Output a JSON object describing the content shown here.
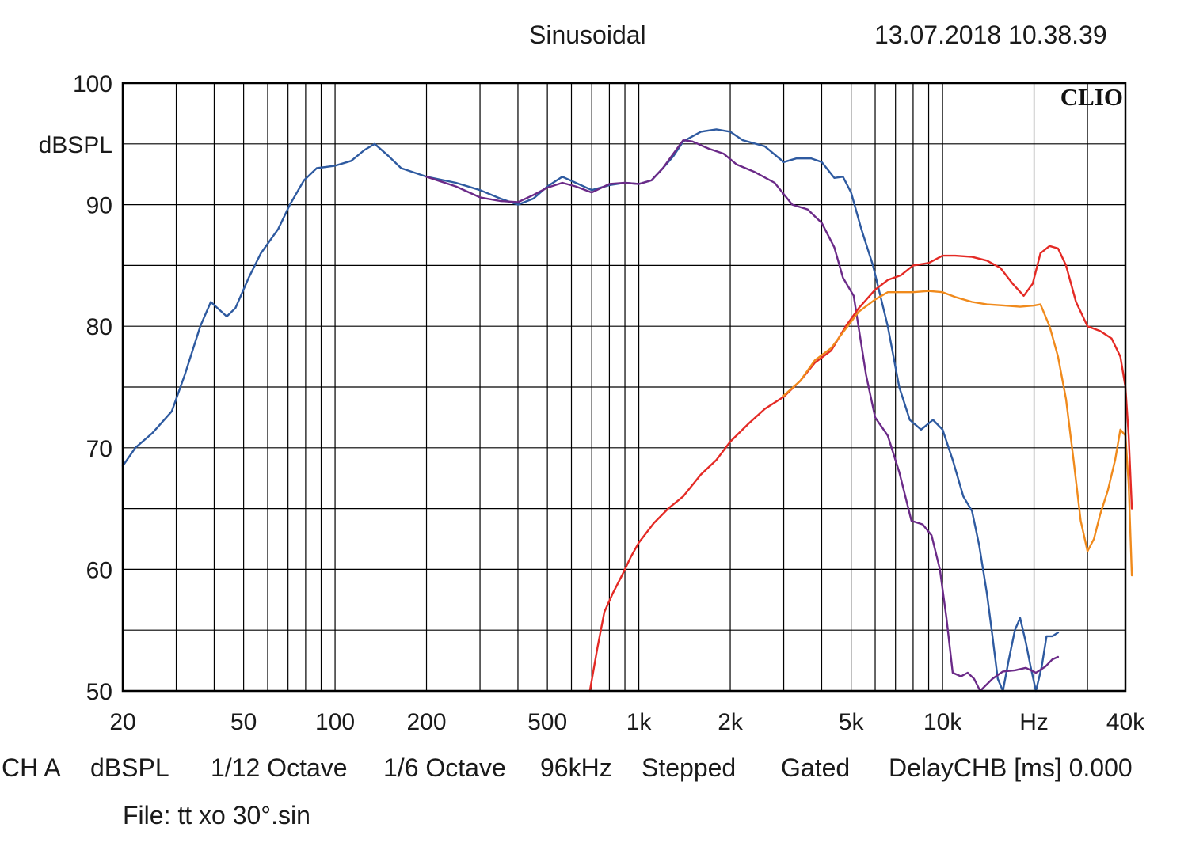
{
  "header": {
    "title": "Sinusoidal",
    "timestamp": "13.07.2018 10.38.39"
  },
  "brand": "CLIO",
  "status_bar": {
    "channel": "CH A",
    "unit": "dBSPL",
    "smoothing1": "1/12 Octave",
    "smoothing2": "1/6 Octave",
    "sample_rate": "96kHz",
    "mode": "Stepped",
    "window": "Gated",
    "delay": "DelayCHB [ms] 0.000"
  },
  "file": "File: tt xo 30°.sin",
  "colors": {
    "grid": "#000000",
    "blue": "#2e5aa0",
    "purple": "#6b2a88",
    "red": "#e42a25",
    "orange": "#f08a1c"
  },
  "chart_data": {
    "type": "line",
    "x_scale": "log",
    "xlim": [
      20,
      40000
    ],
    "ylim": [
      50,
      100
    ],
    "ylabel": "dBSPL",
    "y_ticks": [
      {
        "v": 100,
        "label": "100"
      },
      {
        "v": 90,
        "label": "90"
      },
      {
        "v": 80,
        "label": "80"
      },
      {
        "v": 70,
        "label": "70"
      },
      {
        "v": 60,
        "label": "60"
      },
      {
        "v": 50,
        "label": "50"
      }
    ],
    "x_tick_labels": [
      {
        "v": 20,
        "label": "20"
      },
      {
        "v": 50,
        "label": "50"
      },
      {
        "v": 100,
        "label": "100"
      },
      {
        "v": 200,
        "label": "200"
      },
      {
        "v": 500,
        "label": "500"
      },
      {
        "v": 1000,
        "label": "1k"
      },
      {
        "v": 2000,
        "label": "2k"
      },
      {
        "v": 5000,
        "label": "5k"
      },
      {
        "v": 10000,
        "label": "10k"
      },
      {
        "v": 20000,
        "label": "Hz"
      },
      {
        "v": 40000,
        "label": "40k"
      }
    ],
    "series": [
      {
        "color_key": "blue",
        "points": [
          [
            20,
            68.5
          ],
          [
            22,
            70
          ],
          [
            25,
            71.2
          ],
          [
            29,
            73
          ],
          [
            32,
            76
          ],
          [
            36,
            80
          ],
          [
            39,
            82
          ],
          [
            41,
            81.5
          ],
          [
            44,
            80.8
          ],
          [
            47,
            81.5
          ],
          [
            52,
            84
          ],
          [
            57,
            86
          ],
          [
            65,
            88
          ],
          [
            71,
            90
          ],
          [
            79,
            92
          ],
          [
            87,
            93
          ],
          [
            100,
            93.2
          ],
          [
            113,
            93.6
          ],
          [
            125,
            94.5
          ],
          [
            135,
            95
          ],
          [
            150,
            94
          ],
          [
            165,
            93
          ],
          [
            200,
            92.3
          ],
          [
            250,
            91.8
          ],
          [
            300,
            91.2
          ],
          [
            350,
            90.5
          ],
          [
            400,
            90
          ],
          [
            450,
            90.5
          ],
          [
            500,
            91.5
          ],
          [
            560,
            92.3
          ],
          [
            620,
            91.8
          ],
          [
            700,
            91.2
          ],
          [
            800,
            91.6
          ],
          [
            900,
            91.8
          ],
          [
            1000,
            91.7
          ],
          [
            1100,
            92
          ],
          [
            1200,
            93
          ],
          [
            1300,
            94
          ],
          [
            1400,
            95.2
          ],
          [
            1600,
            96
          ],
          [
            1800,
            96.2
          ],
          [
            2000,
            96
          ],
          [
            2200,
            95.3
          ],
          [
            2600,
            94.8
          ],
          [
            3000,
            93.5
          ],
          [
            3300,
            93.8
          ],
          [
            3700,
            93.8
          ],
          [
            4000,
            93.5
          ],
          [
            4400,
            92.2
          ],
          [
            4700,
            92.3
          ],
          [
            5000,
            91
          ],
          [
            5400,
            88
          ],
          [
            5900,
            85
          ],
          [
            6600,
            80
          ],
          [
            7200,
            75
          ],
          [
            7800,
            72.3
          ],
          [
            8500,
            71.5
          ],
          [
            9300,
            72.3
          ],
          [
            10000,
            71.5
          ],
          [
            10800,
            69
          ],
          [
            11700,
            66
          ],
          [
            12500,
            64.8
          ],
          [
            13200,
            62
          ],
          [
            14000,
            58
          ],
          [
            14600,
            54.5
          ],
          [
            15200,
            51
          ],
          [
            15800,
            50
          ],
          [
            16500,
            52.5
          ],
          [
            17300,
            55
          ],
          [
            18000,
            56
          ],
          [
            18800,
            54
          ],
          [
            19500,
            52
          ],
          [
            20300,
            50
          ],
          [
            21200,
            52
          ],
          [
            22000,
            54.5
          ],
          [
            23000,
            54.5
          ],
          [
            24000,
            54.8
          ]
        ]
      },
      {
        "color_key": "purple",
        "points": [
          [
            200,
            92.3
          ],
          [
            250,
            91.5
          ],
          [
            300,
            90.6
          ],
          [
            350,
            90.3
          ],
          [
            400,
            90.2
          ],
          [
            450,
            90.8
          ],
          [
            500,
            91.4
          ],
          [
            560,
            91.8
          ],
          [
            620,
            91.5
          ],
          [
            700,
            91
          ],
          [
            800,
            91.7
          ],
          [
            900,
            91.8
          ],
          [
            1000,
            91.7
          ],
          [
            1100,
            92
          ],
          [
            1200,
            93
          ],
          [
            1300,
            94.2
          ],
          [
            1400,
            95.3
          ],
          [
            1500,
            95.2
          ],
          [
            1700,
            94.6
          ],
          [
            1900,
            94.2
          ],
          [
            2100,
            93.3
          ],
          [
            2400,
            92.7
          ],
          [
            2800,
            91.8
          ],
          [
            3200,
            90
          ],
          [
            3600,
            89.6
          ],
          [
            4000,
            88.5
          ],
          [
            4400,
            86.5
          ],
          [
            4700,
            84
          ],
          [
            5100,
            82.5
          ],
          [
            5600,
            76
          ],
          [
            6000,
            72.5
          ],
          [
            6600,
            71
          ],
          [
            7200,
            68
          ],
          [
            7900,
            64
          ],
          [
            8600,
            63.7
          ],
          [
            9200,
            62.8
          ],
          [
            9800,
            60
          ],
          [
            10300,
            56
          ],
          [
            10800,
            51.5
          ],
          [
            11500,
            51.2
          ],
          [
            12100,
            51.5
          ],
          [
            12700,
            51
          ],
          [
            13300,
            50
          ],
          [
            14600,
            51
          ],
          [
            15800,
            51.6
          ],
          [
            17300,
            51.7
          ],
          [
            18800,
            51.9
          ],
          [
            20300,
            51.5
          ],
          [
            21800,
            52
          ],
          [
            23000,
            52.6
          ],
          [
            24000,
            52.8
          ]
        ]
      },
      {
        "color_key": "red",
        "points": [
          [
            690,
            50
          ],
          [
            730,
            53.5
          ],
          [
            770,
            56.5
          ],
          [
            820,
            58
          ],
          [
            880,
            59.5
          ],
          [
            940,
            61
          ],
          [
            1000,
            62.2
          ],
          [
            1120,
            63.8
          ],
          [
            1250,
            65
          ],
          [
            1400,
            66
          ],
          [
            1600,
            67.8
          ],
          [
            1800,
            69
          ],
          [
            2000,
            70.5
          ],
          [
            2300,
            72
          ],
          [
            2600,
            73.2
          ],
          [
            3000,
            74.2
          ],
          [
            3400,
            75.5
          ],
          [
            3800,
            77
          ],
          [
            4300,
            78
          ],
          [
            4800,
            80
          ],
          [
            5300,
            81.5
          ],
          [
            6000,
            83
          ],
          [
            6600,
            83.8
          ],
          [
            7300,
            84.2
          ],
          [
            8000,
            85
          ],
          [
            9000,
            85.2
          ],
          [
            10000,
            85.8
          ],
          [
            11000,
            85.8
          ],
          [
            12500,
            85.7
          ],
          [
            14000,
            85.4
          ],
          [
            15500,
            84.8
          ],
          [
            17000,
            83.5
          ],
          [
            18500,
            82.5
          ],
          [
            19800,
            83.5
          ],
          [
            21000,
            86
          ],
          [
            22500,
            86.6
          ],
          [
            24000,
            86.4
          ],
          [
            25500,
            85
          ],
          [
            27500,
            82
          ],
          [
            30000,
            80
          ],
          [
            33000,
            79.6
          ],
          [
            36000,
            79
          ],
          [
            38500,
            77.5
          ],
          [
            40000,
            75
          ],
          [
            41000,
            71
          ],
          [
            42000,
            65
          ]
        ]
      },
      {
        "color_key": "orange",
        "points": [
          [
            3000,
            74.3
          ],
          [
            3400,
            75.5
          ],
          [
            3800,
            77.2
          ],
          [
            4300,
            78.2
          ],
          [
            4800,
            79.8
          ],
          [
            5300,
            81.2
          ],
          [
            6000,
            82.2
          ],
          [
            6600,
            82.8
          ],
          [
            7300,
            82.8
          ],
          [
            8000,
            82.8
          ],
          [
            9000,
            82.9
          ],
          [
            10000,
            82.8
          ],
          [
            11000,
            82.4
          ],
          [
            12500,
            82
          ],
          [
            14000,
            81.8
          ],
          [
            16000,
            81.7
          ],
          [
            18000,
            81.6
          ],
          [
            20000,
            81.7
          ],
          [
            21000,
            81.8
          ],
          [
            22500,
            80
          ],
          [
            24000,
            77.5
          ],
          [
            25500,
            74
          ],
          [
            27000,
            69
          ],
          [
            28500,
            64
          ],
          [
            30000,
            61.5
          ],
          [
            31500,
            62.5
          ],
          [
            33000,
            64.5
          ],
          [
            35000,
            66.5
          ],
          [
            37000,
            69
          ],
          [
            38500,
            71.5
          ],
          [
            40000,
            71
          ],
          [
            41000,
            67
          ],
          [
            42000,
            59.5
          ]
        ]
      }
    ]
  }
}
